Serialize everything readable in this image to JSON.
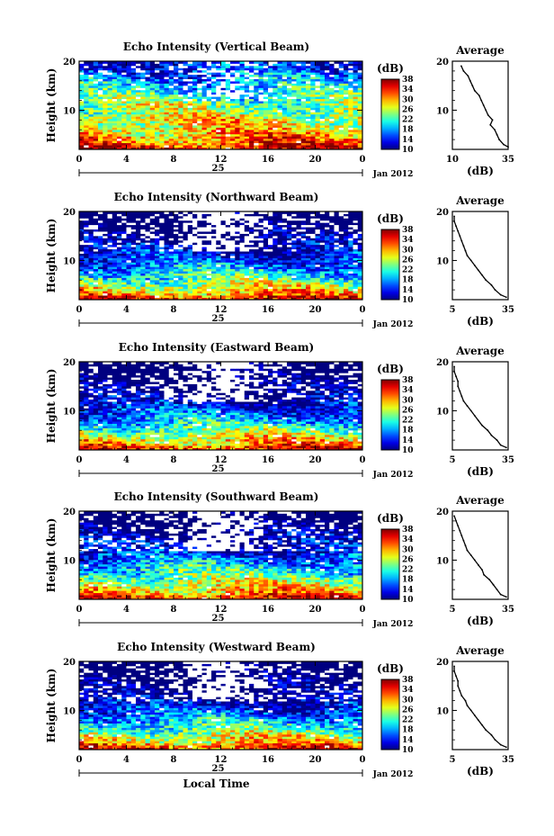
{
  "chart_data": [
    {
      "type": "heatmap",
      "title": "Echo Intensity (Vertical Beam)",
      "ylabel": "Height (km)",
      "x_ticks": [
        "0",
        "4",
        "8",
        "12",
        "16",
        "20",
        "0"
      ],
      "y_ticks": [
        "10",
        "20"
      ],
      "xlim": [
        0,
        24
      ],
      "ylim": [
        2,
        20
      ],
      "date_marker": "25",
      "date_label": "Jan 2012",
      "colorbar": {
        "label": "(dB)",
        "ticks": [
          "10",
          "14",
          "18",
          "22",
          "26",
          "30",
          "34",
          "38"
        ],
        "range": [
          10,
          38
        ]
      },
      "profile": {
        "title": "Average",
        "xlabel": "(dB)",
        "x_ticks": [
          "10",
          "35"
        ],
        "y_ticks": [
          "10",
          "20"
        ],
        "heights": [
          2.5,
          3,
          4,
          5,
          6,
          7,
          8,
          9,
          10,
          11,
          12,
          13,
          14,
          15,
          16,
          17,
          18,
          19
        ],
        "values": [
          35,
          33,
          31,
          30,
          29,
          27,
          28,
          26,
          25,
          24,
          23,
          22,
          20,
          19,
          18,
          17,
          15,
          14
        ]
      }
    },
    {
      "type": "heatmap",
      "title": "Echo Intensity (Northward Beam)",
      "ylabel": "Height (km)",
      "x_ticks": [
        "0",
        "4",
        "8",
        "12",
        "16",
        "20",
        "0"
      ],
      "y_ticks": [
        "10",
        "20"
      ],
      "xlim": [
        0,
        24
      ],
      "ylim": [
        2,
        20
      ],
      "date_marker": "25",
      "date_label": "Jan 2012",
      "colorbar": {
        "label": "(dB)",
        "ticks": [
          "10",
          "14",
          "18",
          "22",
          "26",
          "30",
          "34",
          "38"
        ],
        "range": [
          10,
          38
        ]
      },
      "profile": {
        "title": "Average",
        "xlabel": "(dB)",
        "x_ticks": [
          "5",
          "35"
        ],
        "y_ticks": [
          "10",
          "20"
        ],
        "heights": [
          2.5,
          3,
          4,
          5,
          6,
          7,
          8,
          9,
          10,
          11,
          12,
          13,
          14,
          15,
          16,
          17,
          18,
          19
        ],
        "values": [
          34,
          31,
          28,
          26,
          23,
          21,
          19,
          17,
          15,
          13,
          12,
          11,
          10,
          9,
          8,
          7,
          6,
          6
        ]
      }
    },
    {
      "type": "heatmap",
      "title": "Echo Intensity (Eastward Beam)",
      "ylabel": "Height (km)",
      "x_ticks": [
        "0",
        "4",
        "8",
        "12",
        "16",
        "20",
        "0"
      ],
      "y_ticks": [
        "10",
        "20"
      ],
      "xlim": [
        0,
        24
      ],
      "ylim": [
        2,
        20
      ],
      "date_marker": "25",
      "date_label": "Jan 2012",
      "colorbar": {
        "label": "(dB)",
        "ticks": [
          "10",
          "14",
          "18",
          "22",
          "26",
          "30",
          "34",
          "38"
        ],
        "range": [
          10,
          38
        ]
      },
      "profile": {
        "title": "Average",
        "xlabel": "(dB)",
        "x_ticks": [
          "5",
          "35"
        ],
        "y_ticks": [
          "10",
          "20"
        ],
        "heights": [
          2.5,
          3,
          4,
          5,
          6,
          7,
          8,
          9,
          10,
          11,
          12,
          13,
          14,
          15,
          16,
          17,
          18,
          19
        ],
        "values": [
          34,
          31,
          29,
          26,
          24,
          21,
          19,
          17,
          15,
          13,
          11,
          10,
          9,
          8,
          8,
          7,
          6,
          6
        ]
      }
    },
    {
      "type": "heatmap",
      "title": "Echo Intensity (Southward Beam)",
      "ylabel": "Height (km)",
      "x_ticks": [
        "0",
        "4",
        "8",
        "12",
        "16",
        "20",
        "0"
      ],
      "y_ticks": [
        "10",
        "20"
      ],
      "xlim": [
        0,
        24
      ],
      "ylim": [
        2,
        20
      ],
      "date_marker": "25",
      "date_label": "Jan 2012",
      "colorbar": {
        "label": "(dB)",
        "ticks": [
          "10",
          "14",
          "18",
          "22",
          "26",
          "30",
          "34",
          "38"
        ],
        "range": [
          10,
          38
        ]
      },
      "profile": {
        "title": "Average",
        "xlabel": "(dB)",
        "x_ticks": [
          "5",
          "35"
        ],
        "y_ticks": [
          "10",
          "20"
        ],
        "heights": [
          2.5,
          3,
          4,
          5,
          6,
          7,
          8,
          9,
          10,
          11,
          12,
          13,
          14,
          15,
          16,
          17,
          18,
          19
        ],
        "values": [
          34,
          31,
          29,
          27,
          25,
          22,
          21,
          19,
          17,
          15,
          13,
          12,
          11,
          10,
          9,
          8,
          7,
          6
        ]
      }
    },
    {
      "type": "heatmap",
      "title": "Echo Intensity (Westward Beam)",
      "ylabel": "Height (km)",
      "x_ticks": [
        "0",
        "4",
        "8",
        "12",
        "16",
        "20",
        "0"
      ],
      "y_ticks": [
        "10",
        "20"
      ],
      "xlim": [
        0,
        24
      ],
      "ylim": [
        2,
        20
      ],
      "date_marker": "25",
      "date_label": "Jan 2012",
      "xlabel": "Local Time",
      "colorbar": {
        "label": "(dB)",
        "ticks": [
          "10",
          "14",
          "18",
          "22",
          "26",
          "30",
          "34",
          "38"
        ],
        "range": [
          10,
          38
        ]
      },
      "profile": {
        "title": "Average",
        "xlabel": "(dB)",
        "x_ticks": [
          "5",
          "35"
        ],
        "y_ticks": [
          "10",
          "20"
        ],
        "heights": [
          2.5,
          3,
          4,
          5,
          6,
          7,
          8,
          9,
          10,
          11,
          12,
          13,
          14,
          15,
          16,
          17,
          18,
          19
        ],
        "values": [
          34,
          31,
          28,
          26,
          23,
          21,
          19,
          17,
          15,
          13,
          12,
          10,
          9,
          8,
          8,
          7,
          6,
          6
        ]
      }
    }
  ]
}
